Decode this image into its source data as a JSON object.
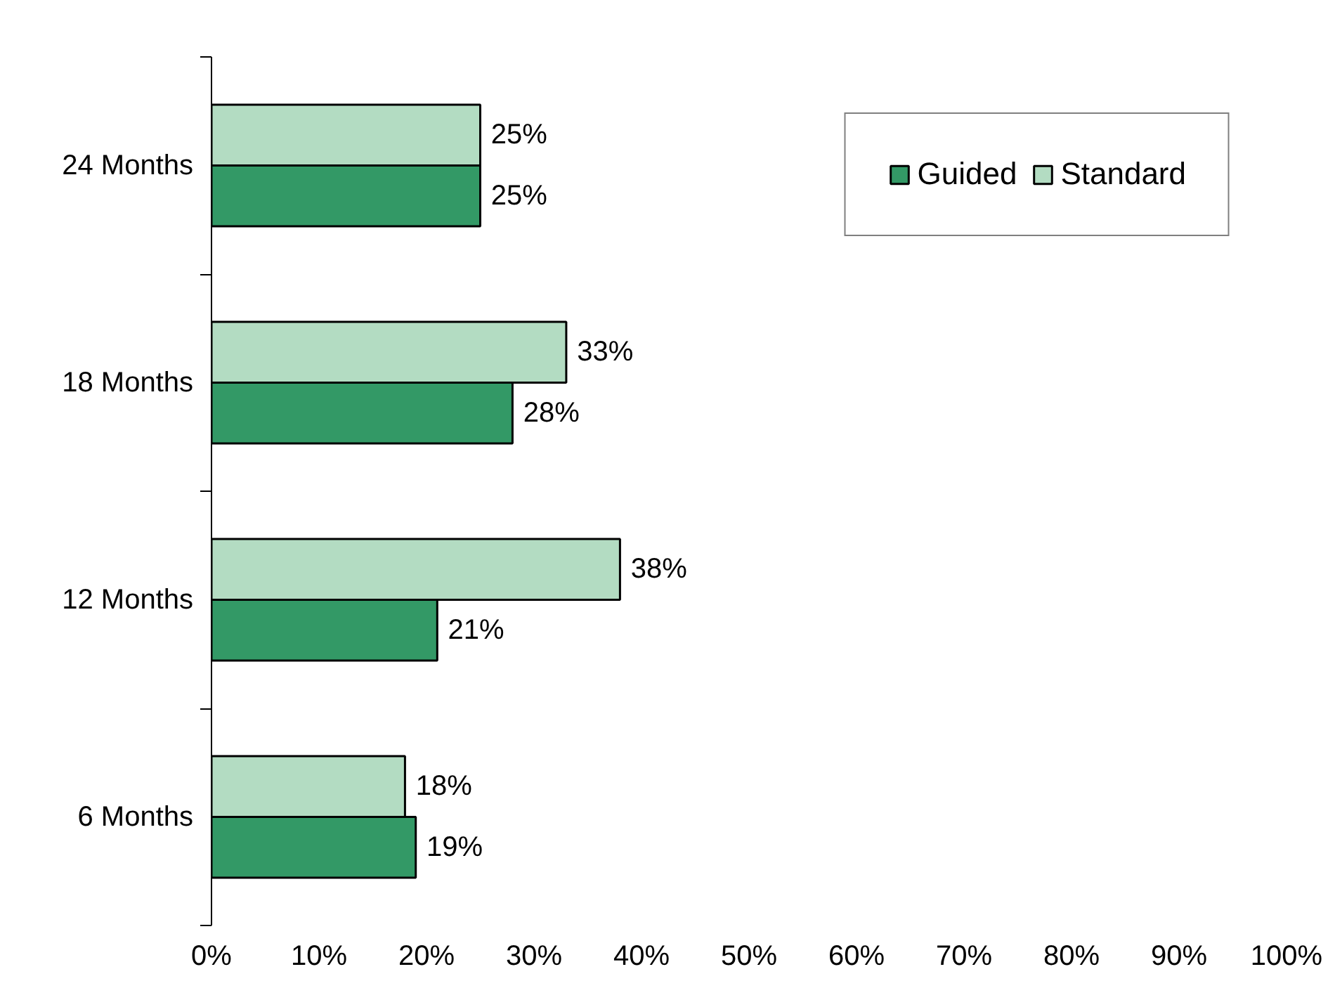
{
  "chart_data": {
    "type": "bar",
    "orientation": "horizontal",
    "categories": [
      "24 Months",
      "18 Months",
      "12 Months",
      "6 Months"
    ],
    "series": [
      {
        "name": "Guided",
        "color": "#339966",
        "values": [
          25,
          28,
          21,
          19
        ],
        "value_labels": [
          "25%",
          "28%",
          "21%",
          "19%"
        ]
      },
      {
        "name": "Standard",
        "color": "#b3dcc2",
        "values": [
          25,
          33,
          38,
          18
        ],
        "value_labels": [
          "25%",
          "33%",
          "38%",
          "18%"
        ]
      }
    ],
    "xlim": [
      0,
      100
    ],
    "xticks": [
      {
        "value": 0,
        "label": "0%"
      },
      {
        "value": 10,
        "label": "10%"
      },
      {
        "value": 20,
        "label": "20%"
      },
      {
        "value": 30,
        "label": "30%"
      },
      {
        "value": 40,
        "label": "40%"
      },
      {
        "value": 50,
        "label": "50%"
      },
      {
        "value": 60,
        "label": "60%"
      },
      {
        "value": 70,
        "label": "70%"
      },
      {
        "value": 80,
        "label": "80%"
      },
      {
        "value": 90,
        "label": "90%"
      },
      {
        "value": 100,
        "label": "100%"
      }
    ],
    "grid": false,
    "legend": "top right"
  }
}
